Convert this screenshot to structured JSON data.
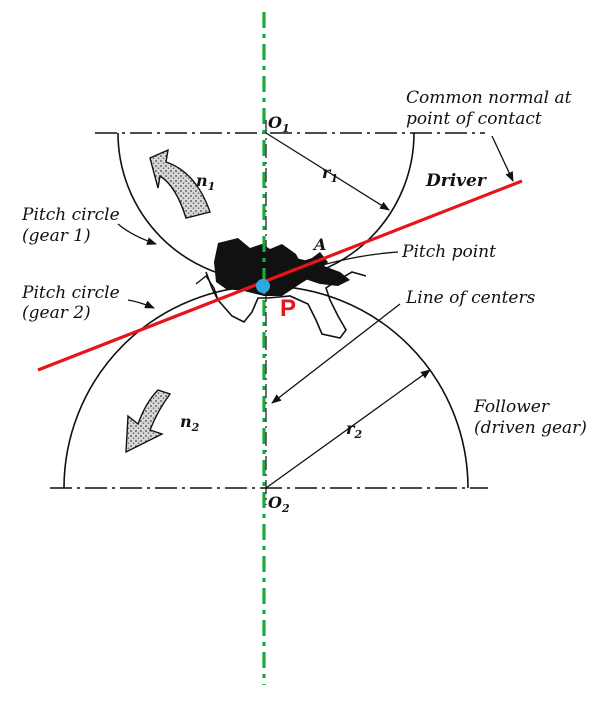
{
  "diagram": {
    "labels": {
      "common_normal_line1": "Common normal at",
      "common_normal_line2": "point of contact",
      "driver": "Driver",
      "pitch_circle_1_line1": "Pitch circle",
      "pitch_circle_1_line2": "(gear 1)",
      "pitch_point": "Pitch point",
      "pitch_circle_2_line1": "Pitch circle",
      "pitch_circle_2_line2": "(gear 2)",
      "line_of_centers": "Line of centers",
      "follower_line1": "Follower",
      "follower_line2": "(driven gear)",
      "point_p_marker": "P",
      "point_p_small": "P",
      "point_a": "A",
      "o1_main": "O",
      "o1_sub": "1",
      "o2_main": "O",
      "o2_sub": "2",
      "r1_main": "r",
      "r1_sub": "1",
      "r2_main": "r",
      "r2_sub": "2",
      "n1_main": "n",
      "n1_sub": "1",
      "n2_main": "n",
      "n2_sub": "2"
    },
    "colors": {
      "normal_line": "#e8141c",
      "center_line": "#1fa83a",
      "pitch_point_dot": "#2fa8e0",
      "p_label": "#e8141c",
      "ink": "#111111"
    }
  }
}
